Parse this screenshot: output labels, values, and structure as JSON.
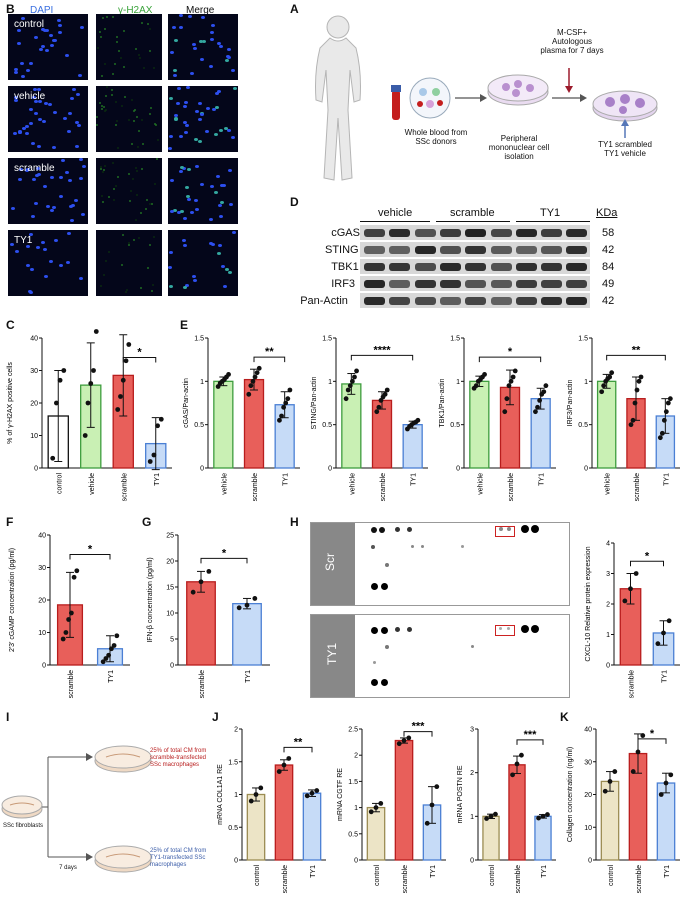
{
  "panels": {
    "A": "A",
    "B": "B",
    "C": "C",
    "D": "D",
    "E": "E",
    "F": "F",
    "G": "G",
    "H": "H",
    "I": "I",
    "J": "J",
    "K": "K"
  },
  "panelB": {
    "columns": [
      "DAPI",
      "γ-H2AX",
      "Merge"
    ],
    "column_colors": [
      "#3a6fe0",
      "#3aa33a",
      "#111111"
    ],
    "rows": [
      "control",
      "vehicle",
      "scramble",
      "TY1"
    ]
  },
  "panelA": {
    "whole_blood": "Whole blood from SSc donors",
    "pbmc": "Peripheral mononuclear cell isolation",
    "culture": "M-CSF+ Autologous plasma for 7 days",
    "treat": "TY1 scrambled TY1 vehicle"
  },
  "panelD": {
    "groups": [
      "vehicle",
      "scramble",
      "TY1"
    ],
    "kda_header": "KDa",
    "proteins": [
      {
        "name": "cGAS",
        "kda": "58"
      },
      {
        "name": "STING",
        "kda": "42"
      },
      {
        "name": "TBK1",
        "kda": "84"
      },
      {
        "name": "IRF3",
        "kda": "49"
      },
      {
        "name": "Pan-Actin",
        "kda": "42"
      }
    ]
  },
  "panelH": {
    "blot_labels": [
      "Scr",
      "TY1"
    ]
  },
  "panelI": {
    "fibroblast": "SSc fibroblasts",
    "days": "7 days",
    "top": "25% of total CM from scramble-transfected SSc macrophages",
    "bottom": "25% of total CM from TY1-transfected SSc macrophages"
  },
  "chart_data": [
    {
      "id": "C",
      "type": "bar",
      "ylabel": "% of γ-H2AX positive cells",
      "categories": [
        "control",
        "vehicle",
        "scramble",
        "TY1"
      ],
      "values": [
        16,
        25.5,
        28.5,
        7.5
      ],
      "errors": [
        14,
        13,
        12.5,
        8
      ],
      "ylim": [
        0,
        40
      ],
      "yticks": [
        0,
        10,
        20,
        30,
        40
      ],
      "colors": [
        "#ffffff",
        "#c9f0b4",
        "#e85f5a",
        "#c6dbf7"
      ],
      "edges": [
        "#111111",
        "#3e9d3e",
        "#b81d1d",
        "#4a7fd4"
      ],
      "points": [
        [
          3,
          20,
          27,
          30
        ],
        [
          10,
          20,
          26,
          30,
          42
        ],
        [
          18,
          22,
          27,
          33,
          38
        ],
        [
          2,
          4,
          13,
          15
        ]
      ],
      "sig": [
        {
          "from": 2,
          "to": 3,
          "label": "*",
          "y": 34
        }
      ]
    },
    {
      "id": "E1",
      "type": "bar",
      "ylabel": "cGAS/Pan-actin",
      "categories": [
        "vehicle",
        "scramble",
        "TY1"
      ],
      "values": [
        1.0,
        1.02,
        0.73
      ],
      "errors": [
        0.05,
        0.12,
        0.15
      ],
      "ylim": [
        0,
        1.5
      ],
      "yticks": [
        0,
        0.5,
        1.0,
        1.5
      ],
      "colors": [
        "#c9f0b4",
        "#e85f5a",
        "#c6dbf7"
      ],
      "edges": [
        "#3e9d3e",
        "#b81d1d",
        "#4a7fd4"
      ],
      "points": [
        [
          0.94,
          0.98,
          1.0,
          1.02,
          1.05,
          1.08
        ],
        [
          0.85,
          0.95,
          1.0,
          1.05,
          1.1,
          1.15
        ],
        [
          0.55,
          0.6,
          0.7,
          0.75,
          0.8,
          0.9
        ]
      ],
      "sig": [
        {
          "from": 1,
          "to": 2,
          "label": "**",
          "y": 1.28
        }
      ]
    },
    {
      "id": "E2",
      "type": "bar",
      "ylabel": "STING/Pan-actin",
      "categories": [
        "vehicle",
        "scramble",
        "TY1"
      ],
      "values": [
        0.97,
        0.78,
        0.5
      ],
      "errors": [
        0.12,
        0.1,
        0.04
      ],
      "ylim": [
        0,
        1.5
      ],
      "yticks": [
        0,
        0.5,
        1.0,
        1.5
      ],
      "colors": [
        "#c9f0b4",
        "#e85f5a",
        "#c6dbf7"
      ],
      "edges": [
        "#3e9d3e",
        "#b81d1d",
        "#4a7fd4"
      ],
      "points": [
        [
          0.8,
          0.9,
          0.95,
          1.0,
          1.05,
          1.12
        ],
        [
          0.65,
          0.7,
          0.78,
          0.82,
          0.85,
          0.9
        ],
        [
          0.45,
          0.48,
          0.5,
          0.52,
          0.53,
          0.55
        ]
      ],
      "sig": [
        {
          "from": 0,
          "to": 2,
          "label": "****",
          "y": 1.3
        }
      ]
    },
    {
      "id": "E3",
      "type": "bar",
      "ylabel": "TBK1/Pan-actin",
      "categories": [
        "vehicle",
        "scramble",
        "TY1"
      ],
      "values": [
        1.0,
        0.93,
        0.8
      ],
      "errors": [
        0.06,
        0.2,
        0.12
      ],
      "ylim": [
        0,
        1.5
      ],
      "yticks": [
        0,
        0.5,
        1.0,
        1.5
      ],
      "colors": [
        "#c9f0b4",
        "#e85f5a",
        "#c6dbf7"
      ],
      "edges": [
        "#3e9d3e",
        "#b81d1d",
        "#4a7fd4"
      ],
      "points": [
        [
          0.92,
          0.95,
          1.0,
          1.02,
          1.05,
          1.08
        ],
        [
          0.65,
          0.8,
          0.95,
          1.0,
          1.05,
          1.12
        ],
        [
          0.65,
          0.7,
          0.78,
          0.85,
          0.88,
          0.95
        ]
      ],
      "sig": [
        {
          "from": 0,
          "to": 2,
          "label": "*",
          "y": 1.28
        }
      ]
    },
    {
      "id": "E4",
      "type": "bar",
      "ylabel": "IRF3/Pan-actin",
      "categories": [
        "vehicle",
        "scramble",
        "TY1"
      ],
      "values": [
        1.0,
        0.8,
        0.6
      ],
      "errors": [
        0.08,
        0.25,
        0.2
      ],
      "ylim": [
        0,
        1.5
      ],
      "yticks": [
        0,
        0.5,
        1.0,
        1.5
      ],
      "colors": [
        "#c9f0b4",
        "#e85f5a",
        "#c6dbf7"
      ],
      "edges": [
        "#3e9d3e",
        "#b81d1d",
        "#4a7fd4"
      ],
      "points": [
        [
          0.88,
          0.95,
          1.0,
          1.03,
          1.05,
          1.1
        ],
        [
          0.5,
          0.55,
          0.75,
          0.9,
          1.0,
          1.05
        ],
        [
          0.35,
          0.4,
          0.55,
          0.65,
          0.75,
          0.8
        ]
      ],
      "sig": [
        {
          "from": 0,
          "to": 2,
          "label": "**",
          "y": 1.3
        }
      ]
    },
    {
      "id": "F",
      "type": "bar",
      "ylabel": "2'3' cGAMP concentration (pg/ml)",
      "categories": [
        "scramble",
        "TY1"
      ],
      "values": [
        18.5,
        5
      ],
      "errors": [
        10,
        4
      ],
      "ylim": [
        0,
        40
      ],
      "yticks": [
        0,
        10,
        20,
        30,
        40
      ],
      "colors": [
        "#e85f5a",
        "#c6dbf7"
      ],
      "edges": [
        "#b81d1d",
        "#4a7fd4"
      ],
      "points": [
        [
          8,
          10,
          14,
          16,
          27,
          29
        ],
        [
          1,
          2,
          3,
          5,
          6,
          9
        ]
      ],
      "sig": [
        {
          "from": 0,
          "to": 1,
          "label": "*",
          "y": 34
        }
      ]
    },
    {
      "id": "G",
      "type": "bar",
      "ylabel": "IFN-β concentration (pg/ml)",
      "categories": [
        "scramble",
        "TY1"
      ],
      "values": [
        16,
        11.8
      ],
      "errors": [
        2,
        1
      ],
      "ylim": [
        0,
        25
      ],
      "yticks": [
        0,
        5,
        10,
        15,
        20,
        25
      ],
      "colors": [
        "#e85f5a",
        "#c6dbf7"
      ],
      "edges": [
        "#b81d1d",
        "#4a7fd4"
      ],
      "points": [
        [
          14,
          16,
          18
        ],
        [
          11,
          11.5,
          12.8
        ]
      ],
      "sig": [
        {
          "from": 0,
          "to": 1,
          "label": "*",
          "y": 20.5
        }
      ]
    },
    {
      "id": "H",
      "type": "bar",
      "ylabel": "CXCL-10 Relative protein expression",
      "categories": [
        "scramble",
        "TY1"
      ],
      "values": [
        2.5,
        1.05
      ],
      "errors": [
        0.5,
        0.4
      ],
      "ylim": [
        0,
        4
      ],
      "yticks": [
        0,
        1,
        2,
        3,
        4
      ],
      "colors": [
        "#e85f5a",
        "#c6dbf7"
      ],
      "edges": [
        "#b81d1d",
        "#4a7fd4"
      ],
      "points": [
        [
          2.1,
          2.5,
          3.0
        ],
        [
          0.7,
          1.05,
          1.45
        ]
      ],
      "sig": [
        {
          "from": 0,
          "to": 1,
          "label": "*",
          "y": 3.4
        }
      ]
    },
    {
      "id": "J1",
      "type": "bar",
      "ylabel": "mRNA COL1A1 RE",
      "categories": [
        "control",
        "scramble",
        "TY1"
      ],
      "values": [
        1.0,
        1.45,
        1.02
      ],
      "errors": [
        0.1,
        0.08,
        0.05
      ],
      "ylim": [
        0,
        2.0
      ],
      "yticks": [
        0,
        0.5,
        1.0,
        1.5,
        2.0
      ],
      "colors": [
        "#ece4c6",
        "#e85f5a",
        "#c6dbf7"
      ],
      "edges": [
        "#9b8c52",
        "#b81d1d",
        "#4a7fd4"
      ],
      "points": [
        [
          0.9,
          1.0,
          1.1
        ],
        [
          1.35,
          1.45,
          1.55
        ],
        [
          0.98,
          1.02,
          1.06
        ]
      ],
      "sig": [
        {
          "from": 1,
          "to": 2,
          "label": "**",
          "y": 1.72
        }
      ]
    },
    {
      "id": "J2",
      "type": "bar",
      "ylabel": "mRNA CGTF RE",
      "categories": [
        "control",
        "scramble",
        "TY1"
      ],
      "values": [
        1.0,
        2.28,
        1.05
      ],
      "errors": [
        0.08,
        0.05,
        0.35
      ],
      "ylim": [
        0,
        2.5
      ],
      "yticks": [
        0,
        0.5,
        1.0,
        1.5,
        2.0,
        2.5
      ],
      "colors": [
        "#ece4c6",
        "#e85f5a",
        "#c6dbf7"
      ],
      "edges": [
        "#9b8c52",
        "#b81d1d",
        "#4a7fd4"
      ],
      "points": [
        [
          0.92,
          1.0,
          1.08
        ],
        [
          2.22,
          2.28,
          2.33
        ],
        [
          0.7,
          1.05,
          1.4
        ]
      ],
      "sig": [
        {
          "from": 1,
          "to": 2,
          "label": "***",
          "y": 2.45
        }
      ]
    },
    {
      "id": "J3",
      "type": "bar",
      "ylabel": "mRNA POSTN RE",
      "categories": [
        "control",
        "scramble",
        "TY1"
      ],
      "values": [
        1.0,
        2.18,
        1.0
      ],
      "errors": [
        0.05,
        0.2,
        0.04
      ],
      "ylim": [
        0,
        3
      ],
      "yticks": [
        0,
        1,
        2,
        3
      ],
      "colors": [
        "#ece4c6",
        "#e85f5a",
        "#c6dbf7"
      ],
      "edges": [
        "#9b8c52",
        "#b81d1d",
        "#4a7fd4"
      ],
      "points": [
        [
          0.95,
          1.0,
          1.05
        ],
        [
          1.95,
          2.2,
          2.4
        ],
        [
          0.96,
          1.0,
          1.04
        ]
      ],
      "sig": [
        {
          "from": 1,
          "to": 2,
          "label": "***",
          "y": 2.75
        }
      ]
    },
    {
      "id": "K",
      "type": "bar",
      "ylabel": "Collagen concentration (ng/ml)",
      "categories": [
        "control",
        "scramble",
        "TY1"
      ],
      "values": [
        24,
        32.5,
        23.5
      ],
      "errors": [
        3,
        6,
        3
      ],
      "ylim": [
        0,
        40
      ],
      "yticks": [
        0,
        10,
        20,
        30,
        40
      ],
      "colors": [
        "#ece4c6",
        "#e85f5a",
        "#c6dbf7"
      ],
      "edges": [
        "#9b8c52",
        "#b81d1d",
        "#4a7fd4"
      ],
      "points": [
        [
          21,
          24,
          27
        ],
        [
          27,
          33,
          38
        ],
        [
          20,
          23.5,
          26
        ]
      ],
      "sig": [
        {
          "from": 1,
          "to": 2,
          "label": "*",
          "y": 37
        }
      ]
    }
  ]
}
